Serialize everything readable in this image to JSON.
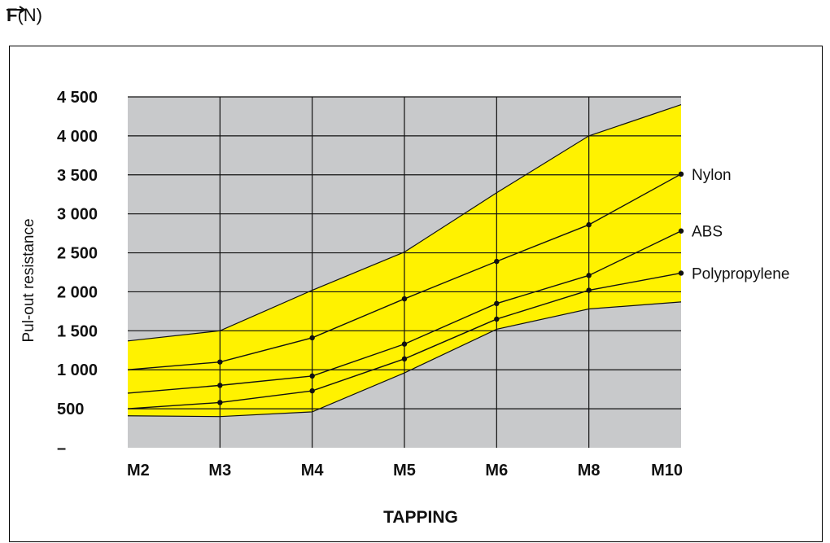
{
  "header": {
    "force_symbol": "F",
    "unit": "(N)"
  },
  "chart_data": {
    "type": "line",
    "xlabel": "TAPPING",
    "ylabel": "Pul-out resistance",
    "categories": [
      "M2",
      "M3",
      "M4",
      "M5",
      "M6",
      "M8",
      "M10"
    ],
    "ylim": [
      0,
      4500
    ],
    "yticks": [
      0,
      500,
      1000,
      1500,
      2000,
      2500,
      3000,
      3500,
      4000,
      4500
    ],
    "ytick_labels": [
      "–",
      "500",
      "1 000",
      "1 500",
      "2 000",
      "2 500",
      "3 000",
      "3 500",
      "4 000",
      "4 500"
    ],
    "grid": true,
    "band": {
      "upper": [
        1370,
        1500,
        2020,
        2510,
        3270,
        4000,
        4400
      ],
      "lower": [
        410,
        400,
        460,
        960,
        1520,
        1780,
        1870
      ],
      "color": "#fff200"
    },
    "plot_background": "#c8c9cb",
    "series": [
      {
        "name": "Nylon",
        "values": [
          1000,
          1100,
          1410,
          1910,
          2390,
          2860,
          3510
        ]
      },
      {
        "name": "ABS",
        "values": [
          700,
          800,
          920,
          1330,
          1850,
          2210,
          2780
        ]
      },
      {
        "name": "Polypropylene",
        "values": [
          500,
          580,
          730,
          1140,
          1650,
          2020,
          2240
        ]
      }
    ]
  }
}
